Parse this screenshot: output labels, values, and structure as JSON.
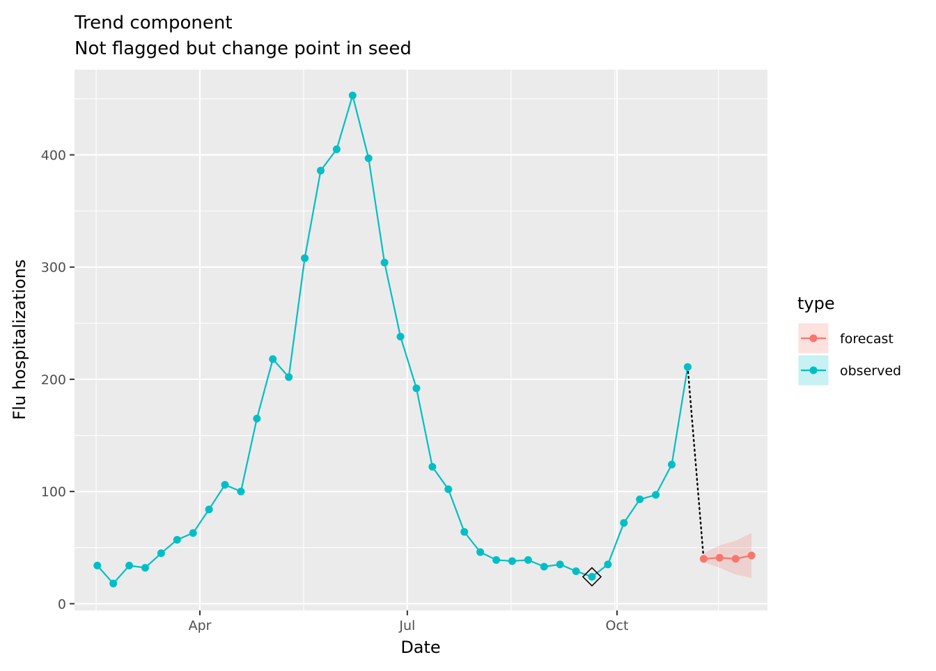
{
  "chart_data": {
    "type": "line",
    "title": "Trend component",
    "subtitle": "Not flagged but change point in seed",
    "xlabel": "Date",
    "ylabel": "Flu hospitalizations",
    "x_ticks": [
      {
        "date": "2023-04-01",
        "label": "Apr"
      },
      {
        "date": "2023-07-01",
        "label": "Jul"
      },
      {
        "date": "2023-10-01",
        "label": "Oct"
      }
    ],
    "y_ticks": [
      0,
      100,
      200,
      300,
      400
    ],
    "xlim": [
      "2023-02-05",
      "2023-12-06"
    ],
    "ylim": [
      -6,
      476
    ],
    "grid": true,
    "legend": {
      "title": "type",
      "position": "right",
      "entries": [
        {
          "label": "forecast",
          "color": "#F8766D"
        },
        {
          "label": "observed",
          "color": "#00BFC4"
        }
      ]
    },
    "series": [
      {
        "name": "observed",
        "color": "#00BFC4",
        "points": [
          {
            "date": "2023-02-15",
            "value": 34
          },
          {
            "date": "2023-02-22",
            "value": 18
          },
          {
            "date": "2023-03-01",
            "value": 34
          },
          {
            "date": "2023-03-08",
            "value": 32
          },
          {
            "date": "2023-03-15",
            "value": 45
          },
          {
            "date": "2023-03-22",
            "value": 57
          },
          {
            "date": "2023-03-29",
            "value": 63
          },
          {
            "date": "2023-04-05",
            "value": 84
          },
          {
            "date": "2023-04-12",
            "value": 106
          },
          {
            "date": "2023-04-19",
            "value": 100
          },
          {
            "date": "2023-04-26",
            "value": 165
          },
          {
            "date": "2023-05-03",
            "value": 218
          },
          {
            "date": "2023-05-10",
            "value": 202
          },
          {
            "date": "2023-05-17",
            "value": 308
          },
          {
            "date": "2023-05-24",
            "value": 386
          },
          {
            "date": "2023-05-31",
            "value": 405
          },
          {
            "date": "2023-06-07",
            "value": 453
          },
          {
            "date": "2023-06-14",
            "value": 397
          },
          {
            "date": "2023-06-21",
            "value": 304
          },
          {
            "date": "2023-06-28",
            "value": 238
          },
          {
            "date": "2023-07-05",
            "value": 192
          },
          {
            "date": "2023-07-12",
            "value": 122
          },
          {
            "date": "2023-07-19",
            "value": 102
          },
          {
            "date": "2023-07-26",
            "value": 64
          },
          {
            "date": "2023-08-02",
            "value": 46
          },
          {
            "date": "2023-08-09",
            "value": 39
          },
          {
            "date": "2023-08-16",
            "value": 38
          },
          {
            "date": "2023-08-23",
            "value": 39
          },
          {
            "date": "2023-08-30",
            "value": 33
          },
          {
            "date": "2023-09-06",
            "value": 35
          },
          {
            "date": "2023-09-13",
            "value": 29
          },
          {
            "date": "2023-09-20",
            "value": 24
          },
          {
            "date": "2023-09-27",
            "value": 35
          },
          {
            "date": "2023-10-04",
            "value": 72
          },
          {
            "date": "2023-10-11",
            "value": 93
          },
          {
            "date": "2023-10-18",
            "value": 97
          },
          {
            "date": "2023-10-25",
            "value": 124
          },
          {
            "date": "2023-11-01",
            "value": 211
          }
        ]
      },
      {
        "name": "forecast",
        "color": "#F8766D",
        "points": [
          {
            "date": "2023-11-08",
            "value": 40,
            "lower": 37,
            "upper": 45
          },
          {
            "date": "2023-11-15",
            "value": 41,
            "lower": 32,
            "upper": 52
          },
          {
            "date": "2023-11-22",
            "value": 40,
            "lower": 26,
            "upper": 56
          },
          {
            "date": "2023-11-29",
            "value": 43,
            "lower": 23,
            "upper": 63
          }
        ]
      }
    ],
    "connector": {
      "from": {
        "date": "2023-11-01",
        "value": 211
      },
      "to": {
        "date": "2023-11-08",
        "value": 40
      },
      "style": "dotted",
      "color": "#000000"
    },
    "change_point": {
      "date": "2023-09-20",
      "value": 24,
      "marker": "open-diamond"
    }
  }
}
